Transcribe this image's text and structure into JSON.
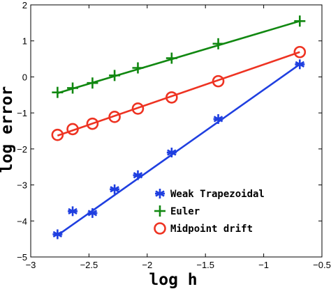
{
  "chart_data": {
    "type": "line",
    "xlabel": "log h",
    "ylabel": "log error",
    "xlim": [
      -3,
      -0.5
    ],
    "ylim": [
      -5,
      2
    ],
    "xticks": [
      -3,
      -2.5,
      -2,
      -1.5,
      -1,
      -0.5
    ],
    "yticks": [
      -5,
      -4,
      -3,
      -2,
      -1,
      0,
      1,
      2
    ],
    "xtick_labels": [
      "−3",
      "−2.5",
      "−2",
      "−1.5",
      "−1",
      "−0.5"
    ],
    "ytick_labels": [
      "−5",
      "−4",
      "−3",
      "−2",
      "−1",
      "0",
      "1",
      "2"
    ],
    "grid": false,
    "legend_position": "bottom-right",
    "series": [
      {
        "name": "Weak Trapezoidal",
        "color": "#1f3fe0",
        "marker": "asterisk",
        "x": [
          -2.77,
          -2.64,
          -2.47,
          -2.28,
          -2.08,
          -1.79,
          -1.39,
          -0.69
        ],
        "y": [
          -4.37,
          -3.73,
          -3.78,
          -3.12,
          -2.73,
          -2.1,
          -1.17,
          0.35
        ],
        "fit": {
          "x": [
            -2.77,
            -0.69
          ],
          "y": [
            -4.4,
            0.35
          ]
        }
      },
      {
        "name": "Euler",
        "color": "#118811",
        "marker": "plus",
        "x": [
          -2.77,
          -2.64,
          -2.47,
          -2.28,
          -2.08,
          -1.79,
          -1.39,
          -0.69
        ],
        "y": [
          -0.43,
          -0.31,
          -0.17,
          0.04,
          0.25,
          0.52,
          0.92,
          1.55
        ],
        "fit": {
          "x": [
            -2.77,
            -0.69
          ],
          "y": [
            -0.45,
            1.55
          ]
        }
      },
      {
        "name": "Midpoint drift",
        "color": "#ee3322",
        "marker": "circle",
        "x": [
          -2.77,
          -2.64,
          -2.47,
          -2.28,
          -2.08,
          -1.79,
          -1.39,
          -0.69
        ],
        "y": [
          -1.61,
          -1.45,
          -1.3,
          -1.11,
          -0.88,
          -0.57,
          -0.12,
          0.69
        ],
        "fit": {
          "x": [
            -2.77,
            -0.69
          ],
          "y": [
            -1.63,
            0.69
          ]
        }
      }
    ]
  }
}
